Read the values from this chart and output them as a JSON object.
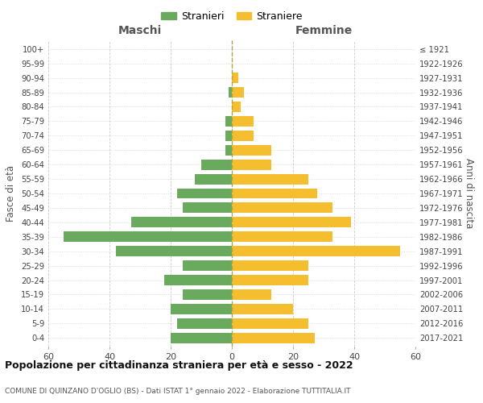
{
  "age_groups_bottom_to_top": [
    "0-4",
    "5-9",
    "10-14",
    "15-19",
    "20-24",
    "25-29",
    "30-34",
    "35-39",
    "40-44",
    "45-49",
    "50-54",
    "55-59",
    "60-64",
    "65-69",
    "70-74",
    "75-79",
    "80-84",
    "85-89",
    "90-94",
    "95-99",
    "100+"
  ],
  "birth_years_bottom_to_top": [
    "2017-2021",
    "2012-2016",
    "2007-2011",
    "2002-2006",
    "1997-2001",
    "1992-1996",
    "1987-1991",
    "1982-1986",
    "1977-1981",
    "1972-1976",
    "1967-1971",
    "1962-1966",
    "1957-1961",
    "1952-1956",
    "1947-1951",
    "1942-1946",
    "1937-1941",
    "1932-1936",
    "1927-1931",
    "1922-1926",
    "≤ 1921"
  ],
  "maschi_bottom_to_top": [
    20,
    18,
    20,
    16,
    22,
    16,
    38,
    55,
    33,
    16,
    18,
    12,
    10,
    2,
    2,
    2,
    0,
    1,
    0,
    0,
    0
  ],
  "femmine_bottom_to_top": [
    27,
    25,
    20,
    13,
    25,
    25,
    55,
    33,
    39,
    33,
    28,
    25,
    13,
    13,
    7,
    7,
    3,
    4,
    2,
    0,
    0
  ],
  "male_color": "#6aaa5e",
  "female_color": "#f5be2e",
  "title": "Popolazione per cittadinanza straniera per età e sesso - 2022",
  "subtitle": "COMUNE DI QUINZANO D'OGLIO (BS) - Dati ISTAT 1° gennaio 2022 - Elaborazione TUTTITALIA.IT",
  "ylabel_left": "Fasce di età",
  "ylabel_right": "Anni di nascita",
  "header_left": "Maschi",
  "header_right": "Femmine",
  "legend_male": "Stranieri",
  "legend_female": "Straniere",
  "xlim": 60,
  "grid_color": "#cccccc",
  "bar_height": 0.72
}
